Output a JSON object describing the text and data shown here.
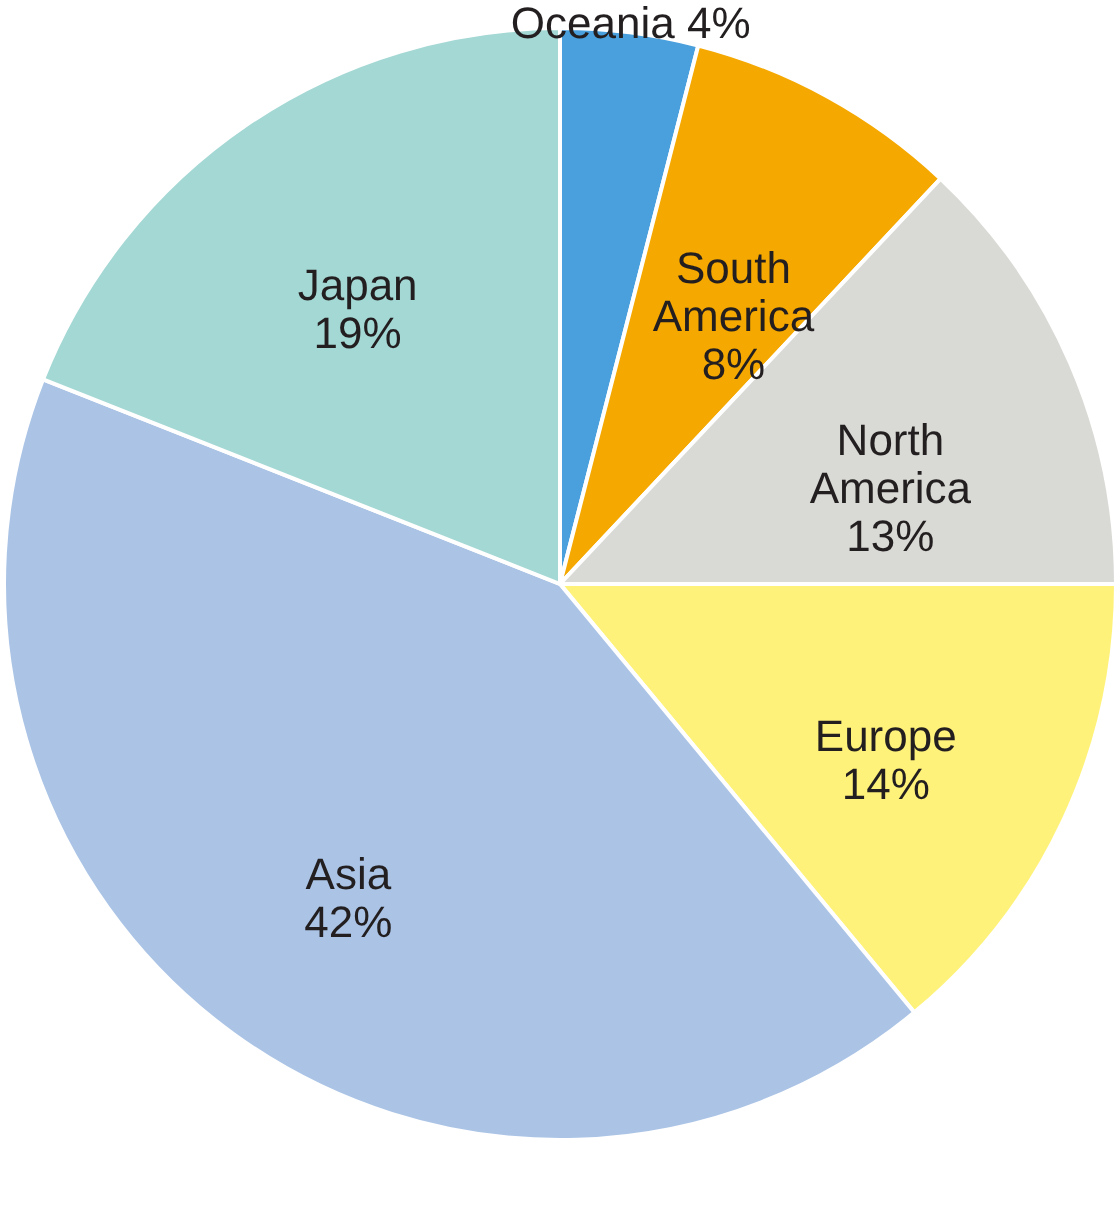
{
  "chart_data": {
    "type": "pie",
    "categories": [
      "Oceania",
      "South America",
      "North America",
      "Europe",
      "Asia",
      "Japan"
    ],
    "values": [
      4,
      8,
      13,
      14,
      42,
      19
    ],
    "colors": [
      "#4a9fdd",
      "#f5a800",
      "#d9d9d5",
      "#fff27a",
      "#abc4e6",
      "#a4d8d4"
    ],
    "value_labels": [
      "4%",
      "8%",
      "13%",
      "14%",
      "42%",
      "19%"
    ]
  }
}
